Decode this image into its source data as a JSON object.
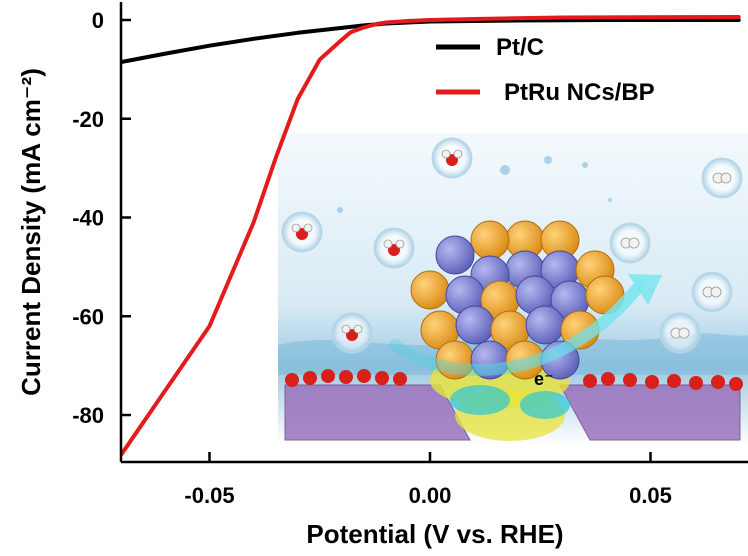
{
  "chart_data": {
    "type": "line",
    "title": "",
    "xlabel": "Potential (V vs. RHE)",
    "ylabel": "Current Density (mA cm⁻²)",
    "xlim": [
      -0.07,
      0.07
    ],
    "ylim": [
      -90,
      2
    ],
    "xticks": [
      -0.05,
      0.0,
      0.05
    ],
    "xtick_labels": [
      "-0.05",
      "0.00",
      "0.05"
    ],
    "yticks": [
      0,
      -20,
      -40,
      -60,
      -80
    ],
    "ytick_labels": [
      "0",
      "-20",
      "-40",
      "-60",
      "-80"
    ],
    "grid": false,
    "legend_position": "top-right",
    "series": [
      {
        "name": "Pt/C",
        "color": "#000000",
        "x": [
          -0.07,
          -0.06,
          -0.05,
          -0.04,
          -0.03,
          -0.02,
          -0.015,
          -0.01,
          -0.005,
          0.0,
          0.01,
          0.02,
          0.04,
          0.07
        ],
        "y": [
          -8.5,
          -6.8,
          -5.2,
          -3.8,
          -2.6,
          -1.6,
          -1.1,
          -0.7,
          -0.5,
          -0.3,
          -0.2,
          -0.1,
          0.0,
          0.0
        ]
      },
      {
        "name": "PtRu NCs/BP",
        "color": "#e41a1c",
        "x": [
          -0.07,
          -0.06,
          -0.05,
          -0.04,
          -0.035,
          -0.03,
          -0.025,
          -0.02,
          -0.018,
          -0.015,
          -0.012,
          -0.01,
          -0.005,
          0.0,
          0.01,
          0.03,
          0.07
        ],
        "y": [
          -88,
          -75,
          -62,
          -41,
          -28,
          -16,
          -8,
          -4,
          -2.5,
          -1.5,
          -0.8,
          -0.5,
          -0.2,
          0.0,
          0.2,
          0.5,
          0.6
        ]
      }
    ],
    "annotations": [
      {
        "text": "e⁻",
        "location": "inset-center"
      }
    ]
  },
  "inset": {
    "electron_label": "e⁻",
    "water_molecules": 4,
    "hydrogen_molecules": 4
  }
}
